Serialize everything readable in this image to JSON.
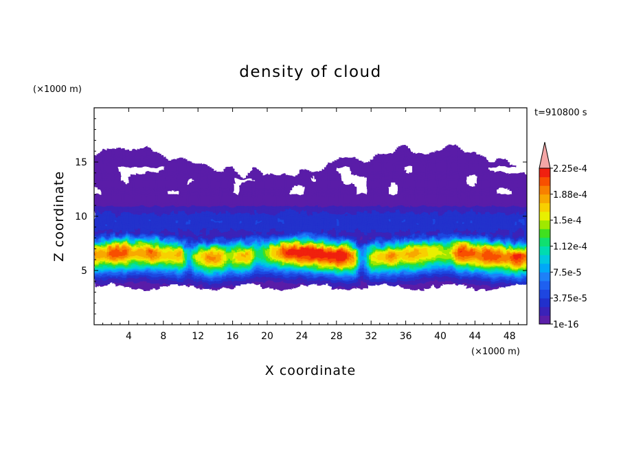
{
  "chart_data": {
    "type": "heatmap",
    "title": "density of cloud",
    "xlabel": "X coordinate",
    "ylabel": "Z coordinate",
    "x_unit": "(×1000 m)",
    "y_unit": "(×1000 m)",
    "time_label": "t=910800 s",
    "xlim": [
      0,
      50
    ],
    "ylim": [
      0,
      20
    ],
    "x_ticks": [
      4,
      8,
      12,
      16,
      20,
      24,
      28,
      32,
      36,
      40,
      44,
      48
    ],
    "y_ticks": [
      5,
      10,
      15
    ],
    "colorbar": {
      "labels": [
        "1e-16",
        "3.75e-5",
        "7.5e-5",
        "1.12e-4",
        "1.5e-4",
        "1.88e-4",
        "2.25e-4"
      ],
      "colors": [
        "#5a1fa8",
        "#3a22b8",
        "#2130cc",
        "#1e46e0",
        "#1e60f0",
        "#1e80f8",
        "#00a8f8",
        "#00c8e0",
        "#00dcb0",
        "#10e070",
        "#40e020",
        "#a0e800",
        "#e8f000",
        "#f8d000",
        "#f8a800",
        "#f88000",
        "#f85000",
        "#f02010"
      ],
      "extend_color": "#f4a6a6"
    },
    "field": {
      "base_z": 3.8,
      "band_peak_z": 6.5,
      "high_value_regions": [
        {
          "x_range": [
            0,
            11
          ],
          "z_range": [
            5.5,
            7.5
          ],
          "level": "yellow"
        },
        {
          "x_range": [
            23,
            29
          ],
          "z_range": [
            5.5,
            7.8
          ],
          "level": "orange"
        },
        {
          "x_range": [
            42,
            50
          ],
          "z_range": [
            5.5,
            7.5
          ],
          "level": "yellow-orange"
        }
      ],
      "upper_cloud_top_z": 17
    }
  }
}
